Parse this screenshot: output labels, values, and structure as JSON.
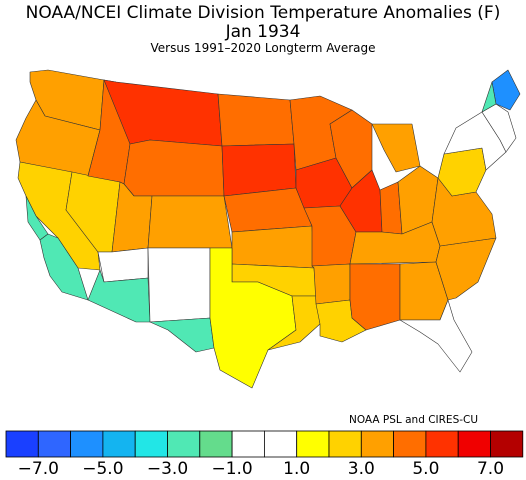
{
  "title": "NOAA/NCEI Climate Division Temperature Anomalies (F)",
  "subtitle": "Jan 1934",
  "caption": "Versus 1991–2020 Longterm Average",
  "credit": "NOAA PSL and CIRES-CU",
  "legend": {
    "colors": [
      "#1a40ff",
      "#2f66ff",
      "#1e90ff",
      "#14b4f0",
      "#22e6e6",
      "#50e8b4",
      "#64dc8c",
      "#ffffff",
      "#ffffff",
      "#ffff00",
      "#ffd200",
      "#ffa000",
      "#ff6e00",
      "#ff3200",
      "#f00000",
      "#b40000"
    ],
    "ticks": [
      "−7.0",
      "−5.0",
      "−3.0",
      "−1.0",
      "1.0",
      "3.0",
      "5.0",
      "7.0"
    ],
    "min": -8.0,
    "max": 8.0,
    "step": 1.0
  },
  "map_regions": [
    {
      "region": "washington",
      "color": "#ffa000"
    },
    {
      "region": "oregon",
      "color": "#ffa000"
    },
    {
      "region": "california-north",
      "color": "#ffd200"
    },
    {
      "region": "california-central-coast",
      "color": "#50e8b4"
    },
    {
      "region": "california-south-coast",
      "color": "#50e8b4"
    },
    {
      "region": "nevada",
      "color": "#ffd200"
    },
    {
      "region": "idaho",
      "color": "#ff6e00"
    },
    {
      "region": "montana",
      "color": "#ff3200"
    },
    {
      "region": "wyoming",
      "color": "#ff6e00"
    },
    {
      "region": "utah",
      "color": "#ffa000"
    },
    {
      "region": "colorado",
      "color": "#ffa000"
    },
    {
      "region": "arizona-north",
      "color": "#ffffff"
    },
    {
      "region": "arizona-south",
      "color": "#50e8b4"
    },
    {
      "region": "new-mexico",
      "color": "#ffffff"
    },
    {
      "region": "north-dakota",
      "color": "#ff6e00"
    },
    {
      "region": "south-dakota",
      "color": "#ff3200"
    },
    {
      "region": "nebraska",
      "color": "#ff6e00"
    },
    {
      "region": "kansas",
      "color": "#ffa000"
    },
    {
      "region": "oklahoma",
      "color": "#ffd200"
    },
    {
      "region": "texas-west",
      "color": "#50e8b4"
    },
    {
      "region": "texas-central",
      "color": "#ffff00"
    },
    {
      "region": "texas-east",
      "color": "#ffd200"
    },
    {
      "region": "minnesota",
      "color": "#ff6e00"
    },
    {
      "region": "iowa",
      "color": "#ff3200"
    },
    {
      "region": "missouri",
      "color": "#ff6e00"
    },
    {
      "region": "arkansas",
      "color": "#ffa000"
    },
    {
      "region": "louisiana",
      "color": "#ffd200"
    },
    {
      "region": "wisconsin",
      "color": "#ff6e00"
    },
    {
      "region": "illinois",
      "color": "#ff3200"
    },
    {
      "region": "michigan",
      "color": "#ffa000"
    },
    {
      "region": "indiana",
      "color": "#ff6e00"
    },
    {
      "region": "ohio",
      "color": "#ffa000"
    },
    {
      "region": "kentucky-tennessee",
      "color": "#ffa000"
    },
    {
      "region": "mississippi-alabama",
      "color": "#ff6e00"
    },
    {
      "region": "georgia",
      "color": "#ffa000"
    },
    {
      "region": "florida",
      "color": "#ffffff"
    },
    {
      "region": "carolinas",
      "color": "#ffa000"
    },
    {
      "region": "virginia",
      "color": "#ffa000"
    },
    {
      "region": "pennsylvania",
      "color": "#ffd200"
    },
    {
      "region": "new-york",
      "color": "#ffffff"
    },
    {
      "region": "new-england",
      "color": "#ffffff"
    },
    {
      "region": "maine",
      "color": "#1e90ff"
    },
    {
      "region": "new-hampshire-vermont",
      "color": "#50e8b4"
    }
  ]
}
